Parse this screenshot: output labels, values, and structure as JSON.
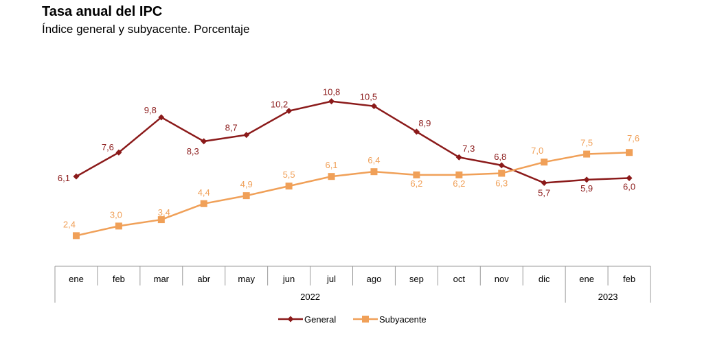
{
  "chart_data": {
    "type": "line",
    "title": "Tasa anual del IPC",
    "subtitle": "Índice general y subyacente. Porcentaje",
    "categories": [
      "ene",
      "feb",
      "mar",
      "abr",
      "may",
      "jun",
      "jul",
      "ago",
      "sep",
      "oct",
      "nov",
      "dic",
      "ene",
      "feb"
    ],
    "years": [
      {
        "label": "2022",
        "start": 0,
        "end": 11
      },
      {
        "label": "2023",
        "start": 12,
        "end": 13
      }
    ],
    "series": [
      {
        "name": "General",
        "color": "#8B1A1A",
        "marker": "diamond",
        "values": [
          6.1,
          7.6,
          9.8,
          8.3,
          8.7,
          10.2,
          10.8,
          10.5,
          8.9,
          7.3,
          6.8,
          5.7,
          5.9,
          6.0
        ],
        "labels": [
          "6,1",
          "7,6",
          "9,8",
          "8,3",
          "8,7",
          "10,2",
          "10,8",
          "10,5",
          "8,9",
          "7,3",
          "6,8",
          "5,7",
          "5,9",
          "6,0"
        ]
      },
      {
        "name": "Subyacente",
        "color": "#F0A058",
        "marker": "square",
        "values": [
          2.4,
          3.0,
          3.4,
          4.4,
          4.9,
          5.5,
          6.1,
          6.4,
          6.2,
          6.2,
          6.3,
          7.0,
          7.5,
          7.6
        ],
        "labels": [
          "2,4",
          "3,0",
          "3,4",
          "4,4",
          "4,9",
          "5,5",
          "6,1",
          "6,4",
          "6,2",
          "6,2",
          "6,3",
          "7,0",
          "7,5",
          "7,6"
        ]
      }
    ],
    "xlabel": "",
    "ylabel": "",
    "ylim": [
      0,
      12
    ],
    "grid": false,
    "legend": "bottom-center"
  }
}
